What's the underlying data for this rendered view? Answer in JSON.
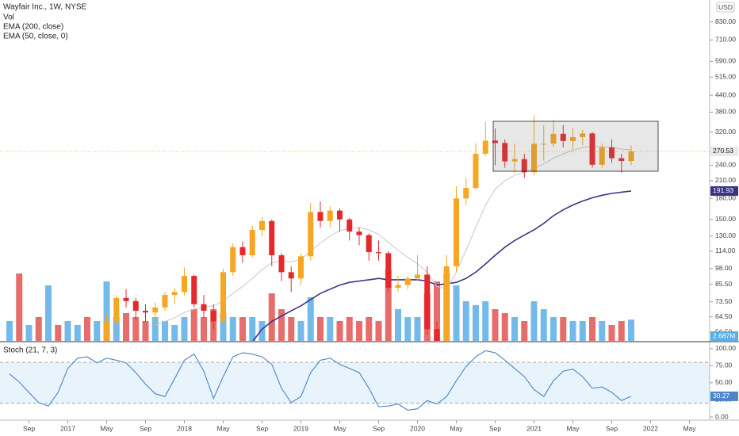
{
  "chart_data": {
    "type": "candlestick",
    "title": "Wayfair Inc., 1W, NYSE",
    "currency": "USD",
    "log_scale": true,
    "grid": false,
    "up_color": "#f5a623",
    "down_color": "#e5282b",
    "x": [
      "2016-07",
      "2016-08",
      "2016-09",
      "2016-10",
      "2016-11",
      "2016-12",
      "2017-01",
      "2017-02",
      "2017-03",
      "2017-04",
      "2017-05",
      "2017-06",
      "2017-07",
      "2017-08",
      "2017-09",
      "2017-10",
      "2017-11",
      "2017-12",
      "2018-01",
      "2018-02",
      "2018-03",
      "2018-04",
      "2018-05",
      "2018-06",
      "2018-07",
      "2018-08",
      "2018-09",
      "2018-10",
      "2018-11",
      "2018-12",
      "2019-01",
      "2019-02",
      "2019-03",
      "2019-04",
      "2019-05",
      "2019-06",
      "2019-07",
      "2019-08",
      "2019-09",
      "2019-10",
      "2019-11",
      "2019-12",
      "2020-01",
      "2020-02",
      "2020-03",
      "2020-04",
      "2020-05",
      "2020-06",
      "2020-07",
      "2020-08",
      "2020-09",
      "2020-10",
      "2020-11",
      "2020-12",
      "2021-01",
      "2021-02",
      "2021-03",
      "2021-04",
      "2021-05",
      "2021-06",
      "2021-07",
      "2021-08",
      "2021-09",
      "2021-10",
      "2021-11"
    ],
    "open": [
      39,
      43,
      38,
      39,
      33,
      36,
      35,
      40,
      42,
      40,
      47,
      62,
      76,
      74,
      68,
      67,
      70,
      78,
      80,
      92,
      72,
      68,
      62,
      95,
      118,
      110,
      137,
      148,
      110,
      95,
      90,
      109,
      160,
      148,
      162,
      150,
      135,
      131,
      113,
      112,
      83,
      85,
      90,
      93,
      58,
      29,
      100,
      180,
      197,
      265,
      297,
      291,
      248,
      253,
      226,
      289,
      289,
      315,
      296,
      306,
      316,
      241,
      280,
      255,
      249
    ],
    "high": [
      46,
      44,
      42,
      40,
      38,
      38,
      42,
      45,
      44,
      50,
      66,
      78,
      82,
      76,
      72,
      73,
      80,
      83,
      99,
      93,
      78,
      72,
      98,
      122,
      124,
      142,
      153,
      150,
      112,
      100,
      112,
      173,
      175,
      168,
      165,
      152,
      140,
      133,
      125,
      114,
      92,
      92,
      110,
      100,
      62,
      110,
      200,
      215,
      290,
      350,
      330,
      300,
      290,
      265,
      370,
      340,
      355,
      340,
      330,
      325,
      320,
      290,
      300,
      265,
      285
    ],
    "low": [
      36,
      37,
      36,
      31,
      31,
      33,
      34,
      38,
      37,
      39,
      46,
      60,
      70,
      63,
      62,
      60,
      68,
      72,
      78,
      70,
      64,
      58,
      61,
      92,
      103,
      108,
      130,
      100,
      88,
      80,
      85,
      105,
      140,
      140,
      135,
      125,
      120,
      105,
      105,
      80,
      80,
      82,
      88,
      55,
      22,
      28,
      95,
      170,
      195,
      260,
      240,
      235,
      225,
      215,
      220,
      250,
      280,
      280,
      275,
      285,
      235,
      235,
      245,
      225,
      240
    ],
    "close": [
      43,
      38,
      39,
      33,
      36,
      35,
      40,
      42,
      40,
      47,
      62,
      76,
      74,
      68,
      67,
      70,
      78,
      80,
      92,
      72,
      68,
      62,
      95,
      118,
      110,
      137,
      148,
      110,
      95,
      90,
      109,
      160,
      148,
      162,
      150,
      135,
      131,
      113,
      112,
      83,
      85,
      90,
      93,
      58,
      29,
      100,
      180,
      197,
      265,
      297,
      291,
      248,
      253,
      226,
      289,
      289,
      315,
      296,
      306,
      316,
      241,
      280,
      255,
      249,
      270.53
    ],
    "ylim": [
      52.4,
      1004
    ],
    "yticks": [
      {
        "value": 830,
        "label": "830.00"
      },
      {
        "value": 710,
        "label": "710.00"
      },
      {
        "value": 590,
        "label": "590.00"
      },
      {
        "value": 515,
        "label": "515.00"
      },
      {
        "value": 440,
        "label": "440.00"
      },
      {
        "value": 380,
        "label": "380.00"
      },
      {
        "value": 320,
        "label": "320.00"
      },
      {
        "value": 240,
        "label": "240.00"
      },
      {
        "value": 210,
        "label": "210.00"
      },
      {
        "value": 180,
        "label": "180.00"
      },
      {
        "value": 150,
        "label": "150.00"
      },
      {
        "value": 130,
        "label": "130.00"
      },
      {
        "value": 114,
        "label": "114.00"
      },
      {
        "value": 98,
        "label": "98.00"
      },
      {
        "value": 85.5,
        "label": "85.50"
      },
      {
        "value": 73.5,
        "label": "73.50"
      },
      {
        "value": 64.5,
        "label": "64.50"
      },
      {
        "value": 56.5,
        "label": "56.50"
      }
    ],
    "xticks": [
      {
        "value": "2016-09",
        "label": "Sep"
      },
      {
        "value": "2017-01",
        "label": "2017"
      },
      {
        "value": "2017-05",
        "label": "May"
      },
      {
        "value": "2017-09",
        "label": "Sep"
      },
      {
        "value": "2018-01",
        "label": "2018"
      },
      {
        "value": "2018-05",
        "label": "May"
      },
      {
        "value": "2018-09",
        "label": "Sep"
      },
      {
        "value": "2019-01",
        "label": "2019"
      },
      {
        "value": "2019-05",
        "label": "May"
      },
      {
        "value": "2019-09",
        "label": "Sep"
      },
      {
        "value": "2020-01",
        "label": "2020"
      },
      {
        "value": "2020-05",
        "label": "May"
      },
      {
        "value": "2020-09",
        "label": "Sep"
      },
      {
        "value": "2021-01",
        "label": "2021"
      },
      {
        "value": "2021-05",
        "label": "May"
      },
      {
        "value": "2021-09",
        "label": "Sep"
      },
      {
        "value": "2022-01",
        "label": "2022"
      },
      {
        "value": "2022-05",
        "label": "May"
      }
    ],
    "volume": {
      "name": "Vol",
      "up_color": "#5aaee8",
      "down_color": "#e35454",
      "vlim": [
        0,
        43
      ],
      "last_label": "2.687M",
      "values": [
        2.5,
        8.5,
        2,
        3,
        7,
        2,
        2.5,
        2,
        3,
        2.5,
        7.5,
        3,
        3.5,
        3,
        2.5,
        3,
        2.5,
        2,
        3,
        4,
        3,
        4,
        3.5,
        3,
        3,
        3,
        2.5,
        6,
        4,
        3,
        2.5,
        5.5,
        3,
        3,
        2.5,
        3,
        2.5,
        3,
        2.5,
        9,
        4,
        3,
        3,
        6,
        7.5,
        8.5,
        7,
        5,
        4.5,
        5,
        4,
        3.5,
        3,
        2.5,
        5,
        4,
        3,
        3,
        2.5,
        2.5,
        3,
        2.5,
        2,
        2.5,
        2.687
      ]
    },
    "ema_series": [
      {
        "name": "EMA (200, close)",
        "color": "#3b3486",
        "values": [
          null,
          null,
          null,
          null,
          null,
          null,
          null,
          null,
          null,
          null,
          null,
          null,
          null,
          null,
          null,
          null,
          null,
          null,
          null,
          null,
          null,
          null,
          null,
          null,
          null,
          52,
          58,
          62,
          65,
          68,
          71,
          75,
          79,
          82,
          85,
          87,
          88,
          89,
          90,
          89,
          89,
          89,
          89,
          88,
          85,
          86,
          87,
          90,
          95,
          102,
          110,
          118,
          125,
          131,
          137,
          145,
          155,
          163,
          170,
          176,
          181,
          185,
          188,
          190,
          191.93
        ]
      },
      {
        "name": "EMA (50, close, 0)",
        "color": "#c8c8c8",
        "values": [
          null,
          null,
          null,
          null,
          null,
          null,
          null,
          null,
          null,
          null,
          null,
          null,
          null,
          null,
          null,
          60,
          62,
          64,
          67,
          69,
          70,
          71,
          74,
          79,
          84,
          90,
          97,
          103,
          105,
          104,
          106,
          114,
          122,
          130,
          136,
          139,
          140,
          137,
          132,
          123,
          115,
          108,
          102,
          95,
          84,
          82,
          95,
          115,
          140,
          170,
          195,
          210,
          220,
          226,
          233,
          243,
          255,
          265,
          273,
          280,
          282,
          282,
          280,
          276,
          274
        ]
      }
    ],
    "stoch": {
      "name": "Stoch (21, 7, 3)",
      "color": "#4a86c8",
      "band_color": "#e8f3fb",
      "bands": [
        20,
        80
      ],
      "ylim": [
        -4.6,
        109
      ],
      "yticks": [
        {
          "value": 100,
          "label": "100.00"
        },
        {
          "value": 75,
          "label": "75.00"
        },
        {
          "value": 50,
          "label": "50.00"
        },
        {
          "value": 25,
          "label": "25.00"
        },
        {
          "value": 0,
          "label": "0.00"
        }
      ],
      "values": [
        63,
        51,
        36,
        21,
        16,
        36,
        71,
        86,
        88,
        79,
        86,
        83,
        79,
        65,
        48,
        34,
        30,
        56,
        83,
        92,
        67,
        27,
        59,
        88,
        94,
        92,
        88,
        77,
        42,
        21,
        30,
        65,
        83,
        86,
        77,
        71,
        65,
        42,
        15,
        16,
        19,
        10,
        12,
        24,
        19,
        30,
        53,
        74,
        88,
        97,
        94,
        83,
        71,
        59,
        40,
        30,
        53,
        67,
        70,
        59,
        42,
        44,
        36,
        24,
        30.27
      ]
    }
  }
}
